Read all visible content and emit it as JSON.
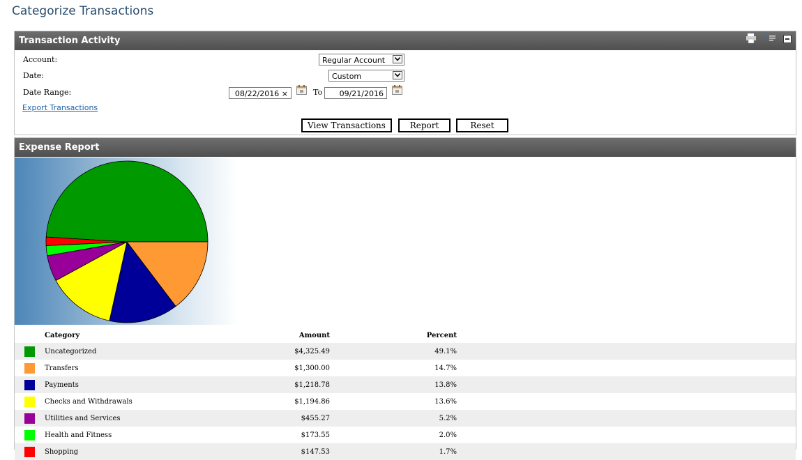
{
  "page_title": "Categorize Transactions",
  "transaction_panel": {
    "title": "Transaction Activity",
    "account_label": "Account:",
    "account_value": "Regular Account",
    "date_label": "Date:",
    "date_value": "Custom",
    "range_label": "Date Range:",
    "from_date": "08/22/2016",
    "clear_glyph": "×",
    "to_label": "To",
    "to_date": "09/21/2016",
    "export_link": "Export Transactions",
    "buttons": {
      "view": "View Transactions",
      "report": "Report",
      "reset": "Reset"
    }
  },
  "expense_panel": {
    "title": "Expense Report",
    "columns": {
      "category": "Category",
      "amount": "Amount",
      "percent": "Percent"
    }
  },
  "chart_data": {
    "type": "pie",
    "title": "",
    "slices": [
      {
        "label": "Uncategorized",
        "amount": "$4,325.49",
        "percent": "49.1%",
        "value": 49.1,
        "color": "#009900"
      },
      {
        "label": "Transfers",
        "amount": "$1,300.00",
        "percent": "14.7%",
        "value": 14.7,
        "color": "#ff9933"
      },
      {
        "label": "Payments",
        "amount": "$1,218.78",
        "percent": "13.8%",
        "value": 13.8,
        "color": "#000099"
      },
      {
        "label": "Checks and Withdrawals",
        "amount": "$1,194.86",
        "percent": "13.6%",
        "value": 13.6,
        "color": "#ffff00"
      },
      {
        "label": "Utilities and Services",
        "amount": "$455.27",
        "percent": "5.2%",
        "value": 5.2,
        "color": "#990099"
      },
      {
        "label": "Health and Fitness",
        "amount": "$173.55",
        "percent": "2.0%",
        "value": 2.0,
        "color": "#00ff00"
      },
      {
        "label": "Shopping",
        "amount": "$147.53",
        "percent": "1.7%",
        "value": 1.7,
        "color": "#ff0000"
      }
    ]
  }
}
